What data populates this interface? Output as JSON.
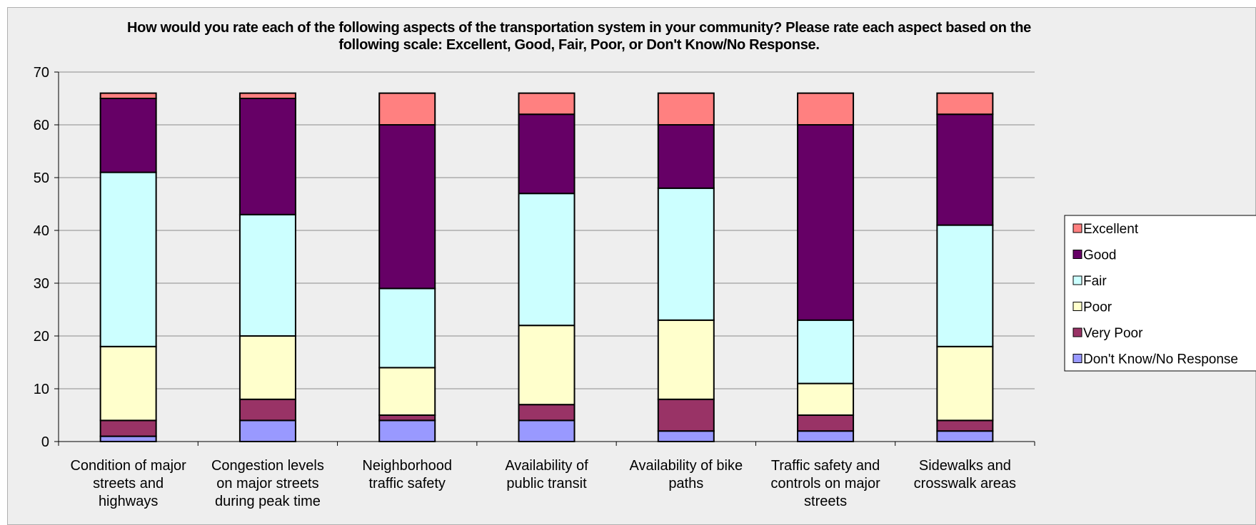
{
  "chart_data": {
    "type": "bar",
    "stacked": true,
    "title": "How would you rate each of the following aspects of the transportation system in your community?  Please rate each aspect based on the following scale: Excellent, Good, Fair, Poor, or Don't Know/No Response.",
    "xlabel": "",
    "ylabel": "",
    "ylim": [
      0,
      70
    ],
    "yticks": [
      "0",
      "10",
      "20",
      "30",
      "40",
      "50",
      "60",
      "70"
    ],
    "grid": true,
    "legend_position": "right",
    "categories": [
      "Condition of major streets and highways",
      "Congestion levels on major streets during peak time",
      "Neighborhood traffic safety",
      "Availability of public transit",
      "Availability of bike paths",
      "Traffic safety and controls on major streets",
      "Sidewalks and crosswalk areas"
    ],
    "category_lines": [
      [
        "Condition of major",
        "streets and",
        "highways"
      ],
      [
        "Congestion levels",
        "on major streets",
        "during peak time"
      ],
      [
        "Neighborhood",
        "traffic safety"
      ],
      [
        "Availability of",
        "public transit"
      ],
      [
        "Availability of bike",
        "paths"
      ],
      [
        "Traffic safety and",
        "controls on major",
        "streets"
      ],
      [
        "Sidewalks and",
        "crosswalk areas"
      ]
    ],
    "series": [
      {
        "name": "Don't Know/No Response",
        "color": "#9999ff",
        "values": [
          1,
          4,
          4,
          4,
          2,
          2,
          2
        ]
      },
      {
        "name": "Very Poor",
        "color": "#993366",
        "values": [
          3,
          4,
          1,
          3,
          6,
          3,
          2
        ]
      },
      {
        "name": "Poor",
        "color": "#ffffcc",
        "values": [
          14,
          12,
          9,
          15,
          15,
          6,
          14
        ]
      },
      {
        "name": "Fair",
        "color": "#ccffff",
        "values": [
          33,
          23,
          15,
          25,
          25,
          12,
          23
        ]
      },
      {
        "name": "Good",
        "color": "#660066",
        "values": [
          14,
          22,
          31,
          15,
          12,
          37,
          21
        ]
      },
      {
        "name": "Excellent",
        "color": "#ff8080",
        "values": [
          1,
          1,
          6,
          4,
          6,
          6,
          4
        ]
      }
    ],
    "legend_order": [
      "Excellent",
      "Good",
      "Fair",
      "Poor",
      "Very Poor",
      "Don't Know/No Response"
    ]
  }
}
